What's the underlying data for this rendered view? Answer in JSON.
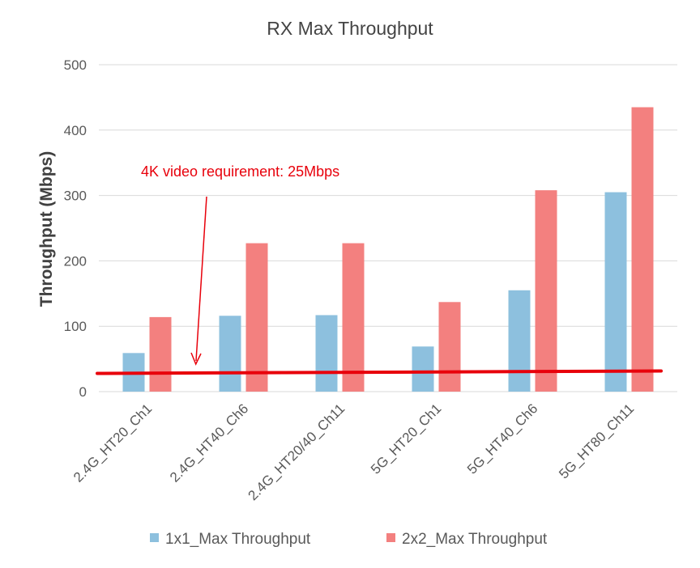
{
  "chart_data": {
    "type": "bar",
    "title": "RX Max Throughput",
    "xlabel": "",
    "ylabel": "Throughput  (Mbps)",
    "ylim": [
      0,
      500
    ],
    "yticks": [
      0,
      100,
      200,
      300,
      400,
      500
    ],
    "grid": true,
    "legend_position": "bottom",
    "categories": [
      "2.4G_HT20_Ch1",
      "2.4G_HT40_Ch6",
      "2.4G_HT20/40_Ch11",
      "5G_HT20_Ch1",
      "5G_HT40_Ch6",
      "5G_HT80_Ch11"
    ],
    "series": [
      {
        "name": "1x1_Max Throughput",
        "color": "#8dc0de",
        "values": [
          59,
          116,
          117,
          69,
          155,
          305
        ]
      },
      {
        "name": "2x2_Max Throughput",
        "color": "#f3807f",
        "values": [
          114,
          227,
          227,
          137,
          308,
          435
        ]
      }
    ],
    "annotation": {
      "text": "4K video requirement: 25Mbps",
      "color": "#e8000b",
      "line_value": 25
    }
  }
}
